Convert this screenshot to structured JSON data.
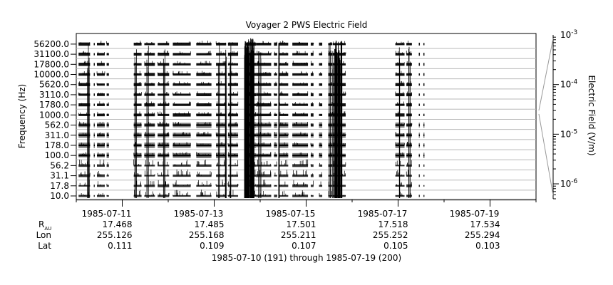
{
  "chart_data": {
    "type": "heatmap",
    "title": "Voyager 2 PWS Electric Field",
    "ylabel": "Frequency (Hz)",
    "colorbar_label": "Electric Field (V/m)",
    "xlabel": "1985-07-10 (191) through 1985-07-19 (200)",
    "channels": [
      "10.0",
      "17.8",
      "31.1",
      "56.2",
      "100.0",
      "178.0",
      "311.0",
      "562.0",
      "1000.0",
      "1780.0",
      "3110.0",
      "5620.0",
      "10000.0",
      "17800.0",
      "31100.0",
      "56200.0"
    ],
    "x_ticks": [
      "1985-07-11",
      "1985-07-13",
      "1985-07-15",
      "1985-07-17",
      "1985-07-19"
    ],
    "x_range_days": [
      191,
      201
    ],
    "colorbar_ticks": [
      {
        "base": "10",
        "exp": "-3",
        "value": 0.001
      },
      {
        "base": "10",
        "exp": "-4",
        "value": 0.0001
      },
      {
        "base": "10",
        "exp": "-5",
        "value": 1e-05
      },
      {
        "base": "10",
        "exp": "-6",
        "value": 1e-06
      }
    ],
    "colorbar_range": [
      5e-07,
      0.001
    ],
    "colorbar_scale": "log",
    "ephemeris": {
      "labels": {
        "r_main": "R",
        "r_sub": "AU",
        "lon": "Lon",
        "lat": "Lat"
      },
      "R_AU": [
        "17.468",
        "17.485",
        "17.501",
        "17.518",
        "17.534"
      ],
      "Lon": [
        "255.126",
        "255.168",
        "255.211",
        "255.252",
        "255.294"
      ],
      "Lat": [
        "0.111",
        "0.109",
        "0.107",
        "0.105",
        "0.103"
      ]
    },
    "data_segments_days": [
      [
        191.05,
        191.3
      ],
      [
        191.38,
        191.4
      ],
      [
        191.45,
        191.62
      ],
      [
        191.66,
        191.71
      ],
      [
        192.25,
        192.42
      ],
      [
        192.48,
        192.71
      ],
      [
        192.77,
        193.02
      ],
      [
        193.1,
        193.49
      ],
      [
        193.61,
        193.94
      ],
      [
        194.04,
        194.26
      ],
      [
        194.3,
        194.52
      ],
      [
        194.68,
        194.91
      ],
      [
        194.91,
        195.24
      ],
      [
        195.3,
        195.37
      ],
      [
        195.4,
        195.61
      ],
      [
        195.7,
        196.04
      ],
      [
        196.1,
        196.16
      ],
      [
        196.28,
        196.35
      ],
      [
        196.48,
        196.57
      ],
      [
        196.58,
        196.86
      ],
      [
        197.94,
        198.14
      ],
      [
        198.18,
        198.3
      ],
      [
        198.45,
        198.46
      ],
      [
        198.55,
        198.56
      ]
    ],
    "burst_days": [
      191.25,
      191.27,
      192.29,
      192.55,
      192.91,
      194.11,
      194.26,
      194.36,
      194.72,
      194.96,
      195.0,
      195.42,
      196.52,
      196.6,
      196.65,
      198.05,
      198.25
    ]
  }
}
